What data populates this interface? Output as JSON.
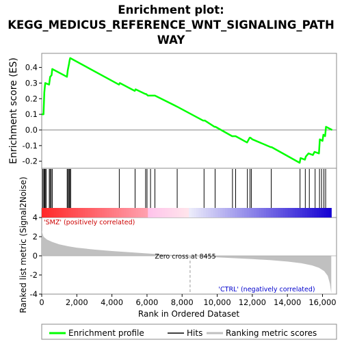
{
  "chart_data": {
    "type": "line",
    "title_lines": [
      "Enrichment plot:",
      "KEGG_MEDICUS_REFERENCE_WNT_SIGNALING_PATH",
      "WAY"
    ],
    "xlabel": "Rank in Ordered Dataset",
    "ylabel_top": "Enrichment score (ES)",
    "ylabel_bottom": "Ranked list metric (Signal2Noise)",
    "xlim": [
      0,
      16800
    ],
    "x_ticks": [
      0,
      2000,
      4000,
      6000,
      8000,
      10000,
      12000,
      14000,
      16000
    ],
    "x_tick_labels": [
      "0",
      "2,000",
      "4,000",
      "6,000",
      "8,000",
      "10,000",
      "12,000",
      "14,000",
      "16,000"
    ],
    "es_ylim": [
      -0.245,
      0.49
    ],
    "es_ticks": [
      -0.2,
      -0.1,
      0.0,
      0.1,
      0.2,
      0.3,
      0.4
    ],
    "es_tick_labels": [
      "-0.2",
      "-0.1",
      "0.0",
      "0.1",
      "0.2",
      "0.3",
      "0.4"
    ],
    "metric_ylim": [
      -4,
      4
    ],
    "metric_ticks": [
      -4,
      -2,
      0,
      2,
      4
    ],
    "metric_tick_labels": [
      "-4",
      "-2",
      "0",
      "2",
      "4"
    ],
    "series": [
      {
        "name": "Enrichment profile",
        "color": "#00ff00",
        "points": [
          [
            0,
            0.1
          ],
          [
            100,
            0.1
          ],
          [
            150,
            0.24
          ],
          [
            200,
            0.3
          ],
          [
            420,
            0.29
          ],
          [
            480,
            0.34
          ],
          [
            560,
            0.35
          ],
          [
            600,
            0.39
          ],
          [
            1440,
            0.34
          ],
          [
            1480,
            0.38
          ],
          [
            1550,
            0.42
          ],
          [
            1600,
            0.45
          ],
          [
            1620,
            0.46
          ],
          [
            4400,
            0.29
          ],
          [
            4450,
            0.3
          ],
          [
            5300,
            0.25
          ],
          [
            5350,
            0.26
          ],
          [
            5900,
            0.23
          ],
          [
            5950,
            0.23
          ],
          [
            6050,
            0.22
          ],
          [
            6250,
            0.22
          ],
          [
            6450,
            0.22
          ],
          [
            7700,
            0.15
          ],
          [
            9200,
            0.06
          ],
          [
            9300,
            0.06
          ],
          [
            9850,
            0.02
          ],
          [
            9900,
            0.02
          ],
          [
            10850,
            -0.04
          ],
          [
            11000,
            -0.04
          ],
          [
            11050,
            -0.04
          ],
          [
            11700,
            -0.08
          ],
          [
            11850,
            -0.05
          ],
          [
            11900,
            -0.05
          ],
          [
            12000,
            -0.06
          ],
          [
            13050,
            -0.11
          ],
          [
            13100,
            -0.11
          ],
          [
            14700,
            -0.21
          ],
          [
            14750,
            -0.18
          ],
          [
            15000,
            -0.19
          ],
          [
            15050,
            -0.17
          ],
          [
            15200,
            -0.15
          ],
          [
            15450,
            -0.16
          ],
          [
            15550,
            -0.14
          ],
          [
            15800,
            -0.15
          ],
          [
            15850,
            -0.06
          ],
          [
            16000,
            -0.07
          ],
          [
            16050,
            -0.03
          ],
          [
            16150,
            -0.04
          ],
          [
            16200,
            0.02
          ],
          [
            16550,
            0.0
          ]
        ]
      }
    ],
    "hits": [
      60,
      120,
      160,
      200,
      250,
      430,
      480,
      540,
      600,
      1450,
      1500,
      1560,
      1600,
      1650,
      4420,
      5320,
      5920,
      6000,
      6200,
      6450,
      7720,
      9250,
      9880,
      10870,
      11050,
      11720,
      11870,
      11950,
      13080,
      14720,
      15020,
      15250,
      15580,
      15830,
      15950,
      16080,
      16180
    ],
    "metric_curve": [
      [
        0,
        2.6
      ],
      [
        100,
        2.0
      ],
      [
        300,
        1.7
      ],
      [
        600,
        1.45
      ],
      [
        1000,
        1.2
      ],
      [
        1500,
        1.0
      ],
      [
        2000,
        0.85
      ],
      [
        3000,
        0.65
      ],
      [
        4000,
        0.5
      ],
      [
        5000,
        0.38
      ],
      [
        6000,
        0.25
      ],
      [
        7000,
        0.13
      ],
      [
        8000,
        0.04
      ],
      [
        8455,
        0.0
      ],
      [
        9000,
        -0.06
      ],
      [
        10000,
        -0.16
      ],
      [
        11000,
        -0.25
      ],
      [
        12000,
        -0.34
      ],
      [
        13000,
        -0.45
      ],
      [
        14000,
        -0.6
      ],
      [
        14800,
        -0.78
      ],
      [
        15400,
        -1.0
      ],
      [
        15800,
        -1.25
      ],
      [
        16100,
        -1.6
      ],
      [
        16300,
        -2.1
      ],
      [
        16420,
        -2.9
      ],
      [
        16500,
        -3.9
      ]
    ],
    "zero_cross_label": "Zero cross at 8455",
    "zero_cross_rank": 8455,
    "pos_label": "'SMZ' (positively correlated)",
    "neg_label": "'CTRL' (negatively correlated)",
    "legend": [
      {
        "label": "Enrichment profile",
        "color": "#00ff00"
      },
      {
        "label": "Hits",
        "color": "#000000"
      },
      {
        "label": "Ranking metric scores",
        "color": "#c0c0c0"
      }
    ],
    "colors": {
      "profile": "#00ff00",
      "metric_fill": "#c0c0c0",
      "pos_text": "#cc0000",
      "neg_text": "#0000cc",
      "zero_line": "#808080"
    }
  }
}
